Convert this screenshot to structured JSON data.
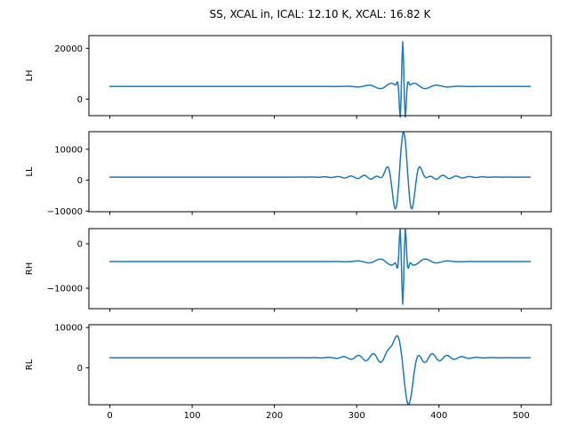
{
  "title": "SS, XCAL in, ICAL: 12.10 K, XCAL: 16.82 K",
  "chart_data": {
    "type": "line",
    "layout": "4 vertically stacked subplots sharing one x-axis, x tick labels only on bottom subplot, no grid, no legend",
    "title": "SS, XCAL in, ICAL: 12.10 K, XCAL: 16.82 K",
    "line_color": "#1f77b4",
    "n_points": 512,
    "x_range": [
      0,
      511
    ],
    "xlim": [
      -25.5,
      536.5
    ],
    "xticks": [
      0,
      100,
      200,
      300,
      400,
      500
    ],
    "xtick_labels_bottom_only": true,
    "subplots": [
      {
        "ylabel": "LH",
        "baseline": 5000,
        "ylim": [
          -6500,
          25000
        ],
        "yticks": [
          0,
          20000
        ],
        "description": "flat baseline ~5000 with narrow oscillatory burst centered near x=356, peak ~22600, dips ~-6000, small ripples 300-420",
        "components": [
          {
            "amp": 19000,
            "center": 356,
            "sigma": 4.5,
            "period": 7,
            "phase": 0
          },
          {
            "amp": 1400,
            "center": 356,
            "sigma": 40,
            "period": 28,
            "phase": 3.1416
          }
        ]
      },
      {
        "ylabel": "LL",
        "baseline": 1000,
        "ylim": [
          -10200,
          15700
        ],
        "yticks": [
          -10000,
          0,
          10000
        ],
        "description": "flat baseline ~1000 with broad wavelet centered near x=357, peak ~14500, side dips ~-9000, ringing out to ~450",
        "components": [
          {
            "amp": 13500,
            "center": 357,
            "sigma": 18,
            "period": 22,
            "phase": 0
          },
          {
            "amp": 1100,
            "center": 357,
            "sigma": 60,
            "period": 16,
            "phase": 0
          }
        ]
      },
      {
        "ylabel": "RH",
        "baseline": -4000,
        "ylim": [
          -14600,
          3400
        ],
        "yticks": [
          -10000,
          0
        ],
        "description": "flat baseline ~-4000 with narrow inverted burst centered near x=356, minimum ~-13600, positive lobes ~+3000",
        "components": [
          {
            "amp": 10500,
            "center": 356,
            "sigma": 5,
            "period": 7,
            "phase": 3.1416
          },
          {
            "amp": 900,
            "center": 356,
            "sigma": 40,
            "period": 28,
            "phase": 0
          }
        ]
      },
      {
        "ylabel": "RL",
        "baseline": 2500,
        "ylim": [
          -9200,
          10700
        ],
        "yticks": [
          0,
          10000
        ],
        "description": "flat baseline ~2500, positive peak ~9800 near x=349 followed by deep minimum ~-8300 near x=362, ringing 300-430",
        "components": [
          {
            "amp": 7300,
            "center": 349,
            "sigma": 7,
            "period": 200,
            "phase": 0
          },
          {
            "amp": -10800,
            "center": 362,
            "sigma": 8,
            "period": 200,
            "phase": 0
          },
          {
            "amp": 1500,
            "center": 356,
            "sigma": 55,
            "period": 18,
            "phase": 0
          }
        ]
      }
    ]
  }
}
